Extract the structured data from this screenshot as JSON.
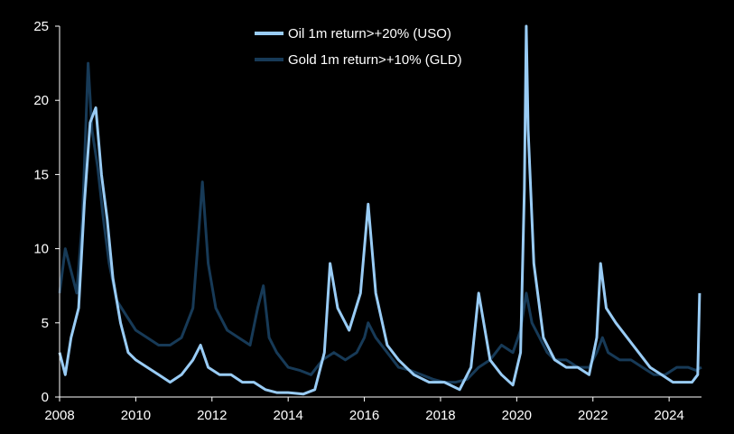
{
  "chart_data": {
    "type": "line",
    "title": "",
    "xlabel": "",
    "ylabel": "",
    "xlim": [
      2008,
      2024.85
    ],
    "ylim": [
      0,
      25
    ],
    "grid": false,
    "legend_placement": "top-center",
    "x_ticks": [
      "2008",
      "2010",
      "2012",
      "2014",
      "2016",
      "2018",
      "2020",
      "2022",
      "2024"
    ],
    "y_ticks": [
      "0",
      "5",
      "10",
      "15",
      "20",
      "25"
    ],
    "series": [
      {
        "name": "Gold 1m return>+10% (GLD)",
        "color": "#173a57",
        "x": [
          2008.0,
          2008.15,
          2008.3,
          2008.45,
          2008.6,
          2008.75,
          2008.85,
          2009.0,
          2009.15,
          2009.3,
          2009.5,
          2009.75,
          2010.0,
          2010.3,
          2010.6,
          2010.9,
          2011.2,
          2011.5,
          2011.65,
          2011.75,
          2011.9,
          2012.1,
          2012.4,
          2012.7,
          2013.0,
          2013.2,
          2013.35,
          2013.5,
          2013.7,
          2014.0,
          2014.3,
          2014.6,
          2014.9,
          2015.2,
          2015.5,
          2015.8,
          2016.0,
          2016.1,
          2016.3,
          2016.6,
          2016.9,
          2017.2,
          2017.5,
          2017.8,
          2018.1,
          2018.4,
          2018.7,
          2019.0,
          2019.3,
          2019.6,
          2019.9,
          2020.1,
          2020.25,
          2020.4,
          2020.6,
          2020.8,
          2021.0,
          2021.3,
          2021.6,
          2021.9,
          2022.1,
          2022.25,
          2022.4,
          2022.7,
          2023.0,
          2023.3,
          2023.6,
          2023.9,
          2024.2,
          2024.5,
          2024.7,
          2024.85
        ],
        "values": [
          7.0,
          10.0,
          8.5,
          7.0,
          12.0,
          22.5,
          18.0,
          15.5,
          12.0,
          9.0,
          6.5,
          5.5,
          4.5,
          4.0,
          3.5,
          3.5,
          4.0,
          6.0,
          11.0,
          14.5,
          9.0,
          6.0,
          4.5,
          4.0,
          3.5,
          6.0,
          7.5,
          4.0,
          3.0,
          2.0,
          1.8,
          1.5,
          2.5,
          3.0,
          2.5,
          3.0,
          4.0,
          5.0,
          4.0,
          3.0,
          2.0,
          1.8,
          1.5,
          1.2,
          1.0,
          1.0,
          1.2,
          2.0,
          2.5,
          3.5,
          3.0,
          4.5,
          7.0,
          5.0,
          4.0,
          3.0,
          2.5,
          2.5,
          2.0,
          2.0,
          3.0,
          4.0,
          3.0,
          2.5,
          2.5,
          2.0,
          1.5,
          1.5,
          2.0,
          2.0,
          1.8,
          2.0
        ]
      },
      {
        "name": "Oil 1m return>+20% (USO)",
        "color": "#99ccf5",
        "x": [
          2008.0,
          2008.15,
          2008.3,
          2008.5,
          2008.65,
          2008.8,
          2008.95,
          2009.1,
          2009.25,
          2009.4,
          2009.6,
          2009.8,
          2010.0,
          2010.3,
          2010.6,
          2010.9,
          2011.2,
          2011.5,
          2011.7,
          2011.9,
          2012.2,
          2012.5,
          2012.8,
          2013.1,
          2013.4,
          2013.7,
          2014.0,
          2014.4,
          2014.7,
          2014.95,
          2015.1,
          2015.3,
          2015.6,
          2015.9,
          2016.1,
          2016.3,
          2016.6,
          2016.9,
          2017.3,
          2017.7,
          2018.1,
          2018.5,
          2018.8,
          2019.0,
          2019.3,
          2019.6,
          2019.9,
          2020.1,
          2020.2,
          2020.25,
          2020.3,
          2020.45,
          2020.7,
          2021.0,
          2021.3,
          2021.6,
          2021.9,
          2022.1,
          2022.2,
          2022.35,
          2022.6,
          2022.9,
          2023.2,
          2023.5,
          2023.8,
          2024.1,
          2024.4,
          2024.6,
          2024.75,
          2024.8
        ],
        "values": [
          3.0,
          1.5,
          4.0,
          6.0,
          13.0,
          18.5,
          19.5,
          15.0,
          12.0,
          8.0,
          5.0,
          3.0,
          2.5,
          2.0,
          1.5,
          1.0,
          1.5,
          2.5,
          3.5,
          2.0,
          1.5,
          1.5,
          1.0,
          1.0,
          0.5,
          0.3,
          0.3,
          0.2,
          0.5,
          3.0,
          9.0,
          6.0,
          4.5,
          7.0,
          13.0,
          7.0,
          3.5,
          2.5,
          1.5,
          1.0,
          1.0,
          0.5,
          2.0,
          7.0,
          2.5,
          1.5,
          0.8,
          3.0,
          14.0,
          25.0,
          18.0,
          9.0,
          4.0,
          2.5,
          2.0,
          2.0,
          1.5,
          4.0,
          9.0,
          6.0,
          5.0,
          4.0,
          3.0,
          2.0,
          1.5,
          1.0,
          1.0,
          1.0,
          1.5,
          7.0
        ]
      }
    ]
  }
}
